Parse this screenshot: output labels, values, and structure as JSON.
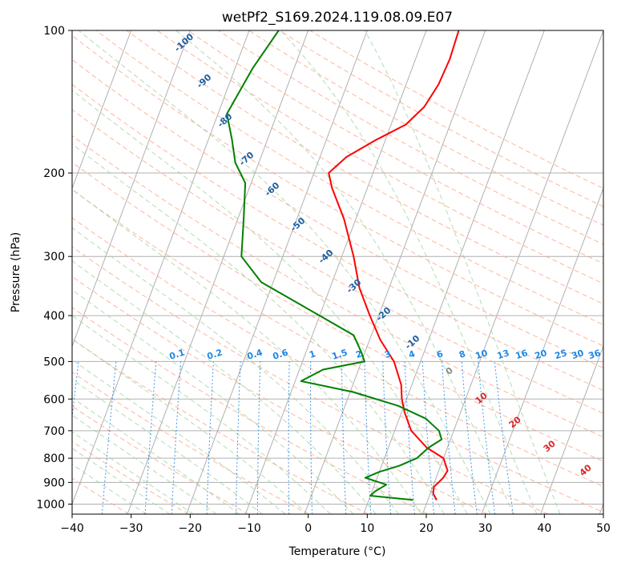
{
  "chart_data": {
    "type": "line",
    "title": "wetPf2_S169.2024.119.08.09.E07",
    "xlabel": "Temperature (°C)",
    "ylabel": "Pressure (hPa)",
    "xlim": [
      -40,
      50
    ],
    "ylim": [
      1050,
      100
    ],
    "y_scale": "log",
    "xticks": [
      "-40",
      "-30",
      "-20",
      "-10",
      "0",
      "10",
      "20",
      "30",
      "40",
      "50"
    ],
    "yticks": [
      "100",
      "200",
      "300",
      "400",
      "500",
      "600",
      "700",
      "800",
      "900",
      "1000"
    ],
    "grid": true,
    "series": [
      {
        "key": "temperature",
        "color": "#ff0000",
        "points": [
          [
            21.5,
            980
          ],
          [
            20.5,
            950
          ],
          [
            20.2,
            920
          ],
          [
            21.2,
            880
          ],
          [
            21.5,
            850
          ],
          [
            20.0,
            800
          ],
          [
            16.5,
            760
          ],
          [
            12.8,
            700
          ],
          [
            10.5,
            640
          ],
          [
            9.2,
            600
          ],
          [
            8.2,
            560
          ],
          [
            5.5,
            500
          ],
          [
            1.8,
            450
          ],
          [
            -1.5,
            400
          ],
          [
            -5,
            350
          ],
          [
            -8,
            300
          ],
          [
            -12,
            250
          ],
          [
            -16,
            215
          ],
          [
            -17.5,
            200
          ],
          [
            -15.5,
            185
          ],
          [
            -11.5,
            170
          ],
          [
            -7.5,
            158
          ],
          [
            -5.5,
            145
          ],
          [
            -4.5,
            130
          ],
          [
            -4.2,
            115
          ],
          [
            -4.5,
            100
          ]
        ]
      },
      {
        "key": "dewpoint",
        "color": "#008000",
        "points": [
          [
            17.5,
            980
          ],
          [
            10,
            960
          ],
          [
            10.5,
            940
          ],
          [
            12,
            910
          ],
          [
            8,
            880
          ],
          [
            10,
            855
          ],
          [
            13,
            830
          ],
          [
            15.5,
            800
          ],
          [
            16.8,
            760
          ],
          [
            18.5,
            730
          ],
          [
            17.5,
            700
          ],
          [
            14.5,
            660
          ],
          [
            9,
            620
          ],
          [
            0.5,
            580
          ],
          [
            -9,
            550
          ],
          [
            -6,
            520
          ],
          [
            0.5,
            500
          ],
          [
            -0.5,
            480
          ],
          [
            -3,
            440
          ],
          [
            -10,
            400
          ],
          [
            -22,
            340
          ],
          [
            -27,
            300
          ],
          [
            -29,
            250
          ],
          [
            -31,
            210
          ],
          [
            -34,
            190
          ],
          [
            -36,
            170
          ],
          [
            -38.5,
            150
          ],
          [
            -37,
            120
          ],
          [
            -35,
            100
          ]
        ]
      }
    ],
    "reference_lines": {
      "dry_adiabats": [
        "-100",
        "-90",
        "-80",
        "-70",
        "-60",
        "-50",
        "-40",
        "-30",
        "-20",
        "-10"
      ],
      "moist_adiabats": [
        "0",
        "10",
        "20",
        "30",
        "40"
      ],
      "mixing_ratio": [
        "0.1",
        "0.2",
        "0.4",
        "0.6",
        "1",
        "1.5",
        "2",
        "3",
        "4",
        "6",
        "8",
        "10",
        "13",
        "16",
        "20",
        "25",
        "30",
        "36"
      ]
    },
    "colors": {
      "dry_adiabat_label": "#1f5fa0",
      "moist_adiabat_label": "#d62728",
      "zero_moist_label": "#888888",
      "mixing_ratio_label": "#1e88e5"
    }
  }
}
